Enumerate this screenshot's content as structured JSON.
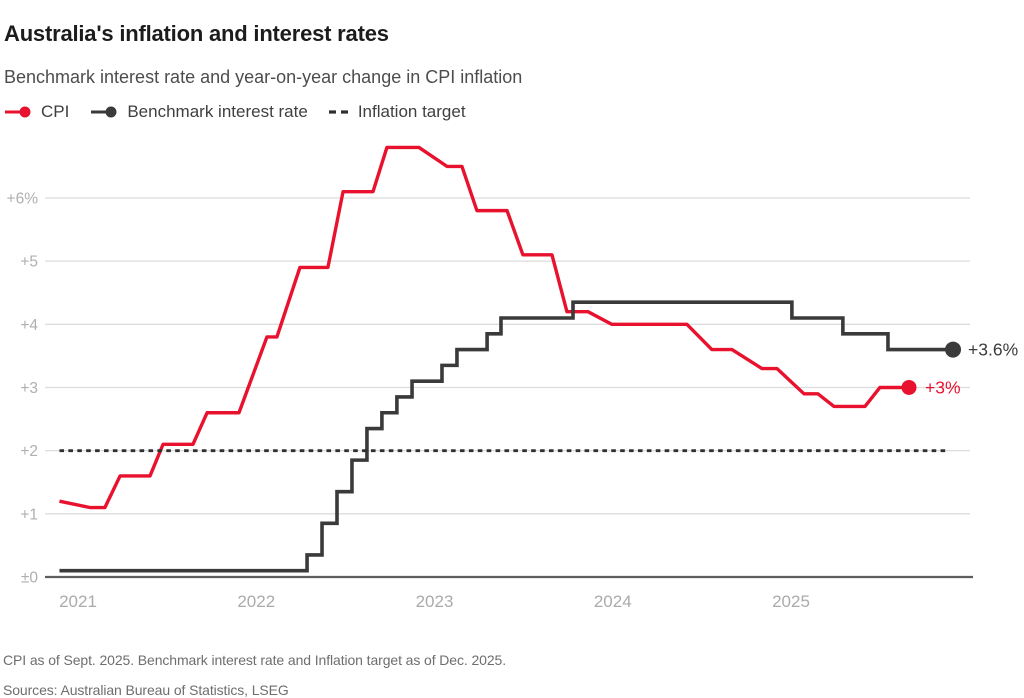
{
  "header": {
    "title": "Australia's inflation and interest rates",
    "subtitle": "Benchmark interest rate and year-on-year change in CPI inflation"
  },
  "legend": {
    "items": [
      {
        "label": "CPI",
        "color": "#e8122e",
        "swatch": "line-dot"
      },
      {
        "label": "Benchmark interest rate",
        "color": "#3a3a3a",
        "swatch": "line-dot"
      },
      {
        "label": "Inflation target",
        "color": "#303030",
        "swatch": "dashes"
      }
    ]
  },
  "footnotes": {
    "note": "CPI as of Sept. 2025. Benchmark interest rate and Inflation target as of Dec. 2025.",
    "sources": "Sources: Australian Bureau of Statistics, LSEG"
  },
  "chart_data": {
    "type": "line",
    "title": "Australia's inflation and interest rates",
    "x_axis": {
      "range": [
        2020.88,
        2025.97
      ],
      "ticks": [
        {
          "value": 2021,
          "label": "2021"
        },
        {
          "value": 2022,
          "label": "2022"
        },
        {
          "value": 2023,
          "label": "2023"
        },
        {
          "value": 2024,
          "label": "2024"
        },
        {
          "value": 2025,
          "label": "2025"
        }
      ]
    },
    "y_axis": {
      "unit": "%",
      "range": [
        0,
        7.0
      ],
      "grid": true,
      "ticks": [
        {
          "value": 0,
          "label": "±0"
        },
        {
          "value": 1,
          "label": "+1"
        },
        {
          "value": 2,
          "label": "+2"
        },
        {
          "value": 3,
          "label": "+3"
        },
        {
          "value": 4,
          "label": "+4"
        },
        {
          "value": 5,
          "label": "+5"
        },
        {
          "value": 6,
          "label": "+6%"
        }
      ]
    },
    "series": [
      {
        "name": "CPI",
        "style": "line",
        "color": "#e8122e",
        "end_label": "+3%",
        "end_value": 3.0,
        "points": [
          [
            2020.896,
            1.2
          ],
          [
            2021.067,
            1.1
          ],
          [
            2021.151,
            1.1
          ],
          [
            2021.236,
            1.6
          ],
          [
            2021.404,
            1.6
          ],
          [
            2021.477,
            2.1
          ],
          [
            2021.645,
            2.1
          ],
          [
            2021.724,
            2.6
          ],
          [
            2021.903,
            2.6
          ],
          [
            2022.06,
            3.8
          ],
          [
            2022.116,
            3.8
          ],
          [
            2022.245,
            4.9
          ],
          [
            2022.402,
            4.9
          ],
          [
            2022.487,
            6.1
          ],
          [
            2022.655,
            6.1
          ],
          [
            2022.733,
            6.8
          ],
          [
            2022.913,
            6.8
          ],
          [
            2023.07,
            6.5
          ],
          [
            2023.154,
            6.5
          ],
          [
            2023.238,
            5.8
          ],
          [
            2023.407,
            5.8
          ],
          [
            2023.496,
            5.1
          ],
          [
            2023.659,
            5.1
          ],
          [
            2023.743,
            4.2
          ],
          [
            2023.861,
            4.2
          ],
          [
            2023.995,
            4.0
          ],
          [
            2024.416,
            4.0
          ],
          [
            2024.556,
            3.6
          ],
          [
            2024.669,
            3.6
          ],
          [
            2024.837,
            3.3
          ],
          [
            2024.921,
            3.3
          ],
          [
            2025.073,
            2.9
          ],
          [
            2025.151,
            2.9
          ],
          [
            2025.241,
            2.7
          ],
          [
            2025.415,
            2.7
          ],
          [
            2025.499,
            3.0
          ],
          [
            2025.662,
            3.0
          ]
        ]
      },
      {
        "name": "Benchmark interest rate",
        "style": "step",
        "color": "#3a3a3a",
        "end_label": "+3.6%",
        "end_value": 3.6,
        "end_t": 2025.909,
        "points": [
          [
            2020.896,
            0.1
          ],
          [
            2022.285,
            0.35
          ],
          [
            2022.369,
            0.85
          ],
          [
            2022.453,
            1.35
          ],
          [
            2022.537,
            1.85
          ],
          [
            2022.621,
            2.35
          ],
          [
            2022.705,
            2.6
          ],
          [
            2022.789,
            2.85
          ],
          [
            2022.874,
            3.1
          ],
          [
            2023.042,
            3.35
          ],
          [
            2023.126,
            3.6
          ],
          [
            2023.295,
            3.85
          ],
          [
            2023.373,
            4.1
          ],
          [
            2023.777,
            4.35
          ],
          [
            2025.005,
            4.1
          ],
          [
            2025.291,
            3.85
          ],
          [
            2025.544,
            3.6
          ]
        ]
      },
      {
        "name": "Inflation target",
        "style": "dashed",
        "color": "#303030",
        "points": [
          [
            2020.896,
            2.0
          ],
          [
            2025.88,
            2.0
          ]
        ]
      }
    ]
  }
}
